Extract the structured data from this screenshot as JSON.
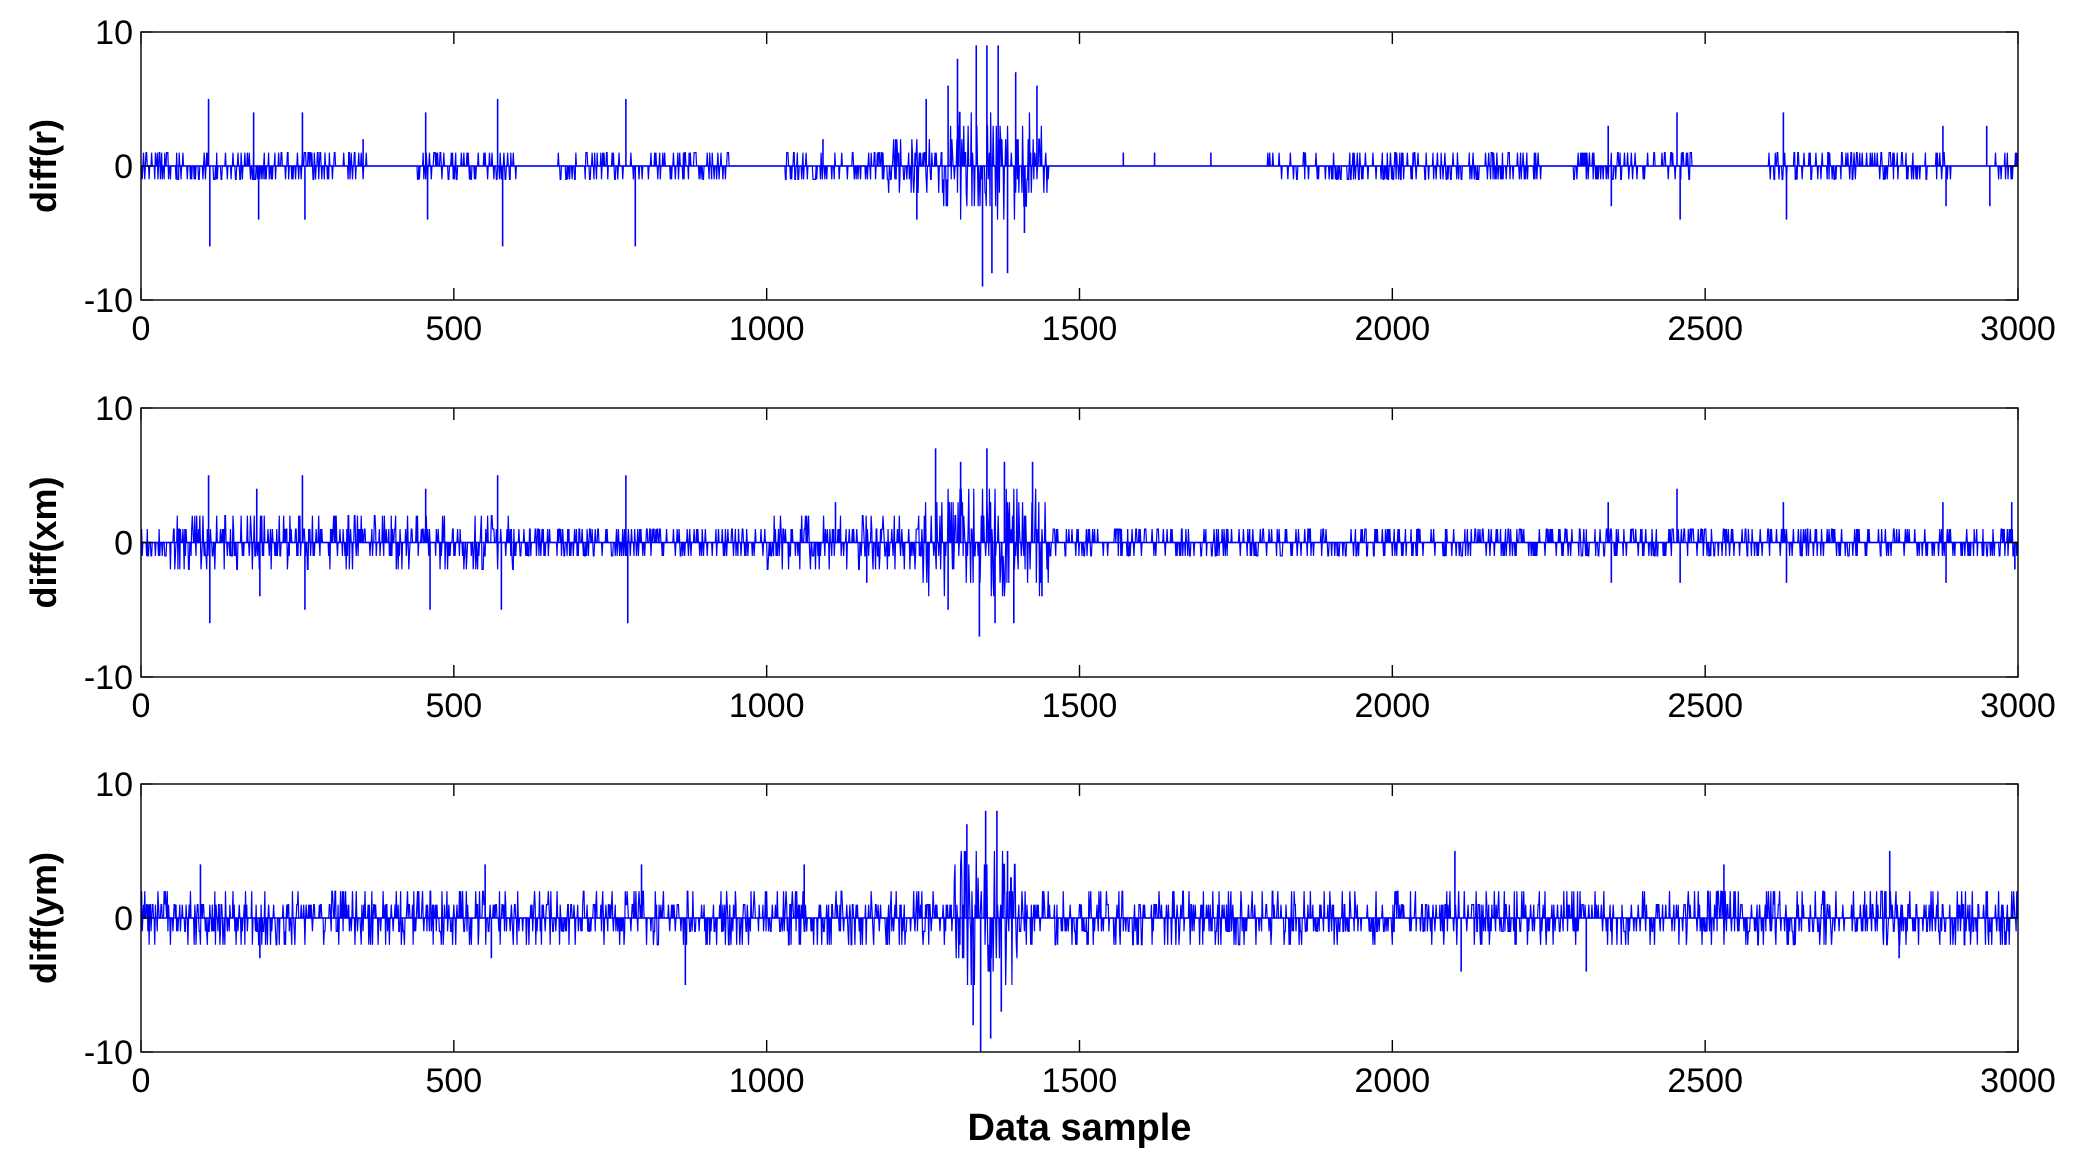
{
  "chart_data": [
    {
      "type": "line",
      "ylabel": "diff(r)",
      "xlabel": "",
      "xlim": [
        0,
        3000
      ],
      "ylim": [
        -10,
        10
      ],
      "xticks": [
        0,
        500,
        1000,
        1500,
        2000,
        2500,
        3000
      ],
      "yticks": [
        -10,
        0,
        10
      ],
      "xtick_labels": [
        "0",
        "500",
        "1000",
        "1500",
        "2000",
        "2500",
        "3000"
      ],
      "ytick_labels": [
        "-10",
        "0",
        "10"
      ],
      "grid": false,
      "color": "#0000ff",
      "series": [
        {
          "x_range": [
            0,
            3000
          ],
          "x_step": 1,
          "base_amplitude": 0,
          "active_spans": [
            {
              "x": [
                0,
                360
              ],
              "amp": 1
            },
            {
              "x": [
                440,
                600
              ],
              "amp": 1
            },
            {
              "x": [
                660,
                940
              ],
              "amp": 1
            },
            {
              "x": [
                1030,
                1190
              ],
              "amp": 1.5
            },
            {
              "x": [
                1190,
                1280
              ],
              "amp": 2
            },
            {
              "x": [
                1280,
                1450
              ],
              "amp": 4
            },
            {
              "x": [
                1800,
                2240
              ],
              "amp": 1
            },
            {
              "x": [
                2290,
                2480
              ],
              "amp": 1
            },
            {
              "x": [
                2600,
                2900
              ],
              "amp": 1
            },
            {
              "x": [
                2960,
                3000
              ],
              "amp": 1
            }
          ],
          "spikes": [
            {
              "x": 108,
              "y": 5
            },
            {
              "x": 110,
              "y": -6
            },
            {
              "x": 180,
              "y": 4
            },
            {
              "x": 188,
              "y": -4
            },
            {
              "x": 258,
              "y": 4
            },
            {
              "x": 262,
              "y": -4
            },
            {
              "x": 355,
              "y": 2
            },
            {
              "x": 455,
              "y": 4
            },
            {
              "x": 458,
              "y": -4
            },
            {
              "x": 570,
              "y": 5
            },
            {
              "x": 578,
              "y": -6
            },
            {
              "x": 775,
              "y": 5
            },
            {
              "x": 790,
              "y": -6
            },
            {
              "x": 1090,
              "y": 2
            },
            {
              "x": 1240,
              "y": -4
            },
            {
              "x": 1255,
              "y": 5
            },
            {
              "x": 1290,
              "y": 6
            },
            {
              "x": 1305,
              "y": 8
            },
            {
              "x": 1335,
              "y": 9
            },
            {
              "x": 1345,
              "y": -9
            },
            {
              "x": 1352,
              "y": 9
            },
            {
              "x": 1360,
              "y": -8
            },
            {
              "x": 1370,
              "y": 9
            },
            {
              "x": 1385,
              "y": -8
            },
            {
              "x": 1398,
              "y": 7
            },
            {
              "x": 1412,
              "y": -5
            },
            {
              "x": 1432,
              "y": 6
            },
            {
              "x": 1570,
              "y": 1
            },
            {
              "x": 1620,
              "y": 1
            },
            {
              "x": 1710,
              "y": 1
            },
            {
              "x": 2345,
              "y": 3
            },
            {
              "x": 2350,
              "y": -3
            },
            {
              "x": 2455,
              "y": 4
            },
            {
              "x": 2460,
              "y": -4
            },
            {
              "x": 2625,
              "y": 4
            },
            {
              "x": 2630,
              "y": -4
            },
            {
              "x": 2880,
              "y": 3
            },
            {
              "x": 2885,
              "y": -3
            },
            {
              "x": 2950,
              "y": 3
            },
            {
              "x": 2955,
              "y": -3
            }
          ]
        }
      ]
    },
    {
      "type": "line",
      "ylabel": "diff(xm)",
      "xlabel": "",
      "xlim": [
        0,
        3000
      ],
      "ylim": [
        -10,
        10
      ],
      "xticks": [
        0,
        500,
        1000,
        1500,
        2000,
        2500,
        3000
      ],
      "yticks": [
        -10,
        0,
        10
      ],
      "xtick_labels": [
        "0",
        "500",
        "1000",
        "1500",
        "2000",
        "2500",
        "3000"
      ],
      "ytick_labels": [
        "-10",
        "0",
        "10"
      ],
      "grid": false,
      "color": "#0000ff",
      "series": [
        {
          "x_range": [
            0,
            3000
          ],
          "x_step": 1,
          "base_amplitude": 1,
          "active_spans": [
            {
              "x": [
                0,
                600
              ],
              "amp": 2
            },
            {
              "x": [
                600,
                1000
              ],
              "amp": 1.5
            },
            {
              "x": [
                1000,
                1250
              ],
              "amp": 2
            },
            {
              "x": [
                1250,
                1450
              ],
              "amp": 4
            },
            {
              "x": [
                1450,
                3000
              ],
              "amp": 1
            }
          ],
          "spikes": [
            {
              "x": 108,
              "y": 5
            },
            {
              "x": 110,
              "y": -6
            },
            {
              "x": 185,
              "y": 4
            },
            {
              "x": 190,
              "y": -4
            },
            {
              "x": 258,
              "y": 5
            },
            {
              "x": 262,
              "y": -5
            },
            {
              "x": 455,
              "y": 4
            },
            {
              "x": 462,
              "y": -5
            },
            {
              "x": 570,
              "y": 5
            },
            {
              "x": 576,
              "y": -5
            },
            {
              "x": 775,
              "y": 5
            },
            {
              "x": 778,
              "y": -6
            },
            {
              "x": 1110,
              "y": 3
            },
            {
              "x": 1160,
              "y": -3
            },
            {
              "x": 1270,
              "y": 7
            },
            {
              "x": 1290,
              "y": -5
            },
            {
              "x": 1310,
              "y": 6
            },
            {
              "x": 1340,
              "y": -7
            },
            {
              "x": 1352,
              "y": 7
            },
            {
              "x": 1365,
              "y": -6
            },
            {
              "x": 1380,
              "y": 6
            },
            {
              "x": 1395,
              "y": -6
            },
            {
              "x": 1425,
              "y": 6
            },
            {
              "x": 1440,
              "y": -4
            },
            {
              "x": 2345,
              "y": 3
            },
            {
              "x": 2350,
              "y": -3
            },
            {
              "x": 2455,
              "y": 4
            },
            {
              "x": 2460,
              "y": -3
            },
            {
              "x": 2625,
              "y": 3
            },
            {
              "x": 2630,
              "y": -3
            },
            {
              "x": 2880,
              "y": 3
            },
            {
              "x": 2885,
              "y": -3
            },
            {
              "x": 2990,
              "y": 3
            },
            {
              "x": 2995,
              "y": -2
            }
          ]
        }
      ]
    },
    {
      "type": "line",
      "ylabel": "diff(ym)",
      "xlabel": "Data sample",
      "xlim": [
        0,
        3000
      ],
      "ylim": [
        -10,
        10
      ],
      "xticks": [
        0,
        500,
        1000,
        1500,
        2000,
        2500,
        3000
      ],
      "yticks": [
        -10,
        0,
        10
      ],
      "xtick_labels": [
        "0",
        "500",
        "1000",
        "1500",
        "2000",
        "2500",
        "3000"
      ],
      "ytick_labels": [
        "-10",
        "0",
        "10"
      ],
      "grid": false,
      "color": "#0000ff",
      "series": [
        {
          "x_range": [
            0,
            3000
          ],
          "x_step": 1,
          "base_amplitude": 1.5,
          "active_spans": [
            {
              "x": [
                0,
                1300
              ],
              "amp": 2
            },
            {
              "x": [
                1300,
                1400
              ],
              "amp": 5
            },
            {
              "x": [
                1400,
                3000
              ],
              "amp": 2
            }
          ],
          "spikes": [
            {
              "x": 95,
              "y": 4
            },
            {
              "x": 190,
              "y": -3
            },
            {
              "x": 550,
              "y": 4
            },
            {
              "x": 560,
              "y": -3
            },
            {
              "x": 800,
              "y": 4
            },
            {
              "x": 870,
              "y": -5
            },
            {
              "x": 1060,
              "y": 4
            },
            {
              "x": 1320,
              "y": 7
            },
            {
              "x": 1330,
              "y": -8
            },
            {
              "x": 1342,
              "y": -10
            },
            {
              "x": 1350,
              "y": 8
            },
            {
              "x": 1358,
              "y": -9
            },
            {
              "x": 1368,
              "y": 8
            },
            {
              "x": 1375,
              "y": -7
            },
            {
              "x": 1385,
              "y": 5
            },
            {
              "x": 2100,
              "y": 5
            },
            {
              "x": 2110,
              "y": -4
            },
            {
              "x": 2310,
              "y": -4
            },
            {
              "x": 2530,
              "y": 4
            },
            {
              "x": 2795,
              "y": 5
            },
            {
              "x": 2810,
              "y": -3
            }
          ]
        }
      ]
    }
  ]
}
